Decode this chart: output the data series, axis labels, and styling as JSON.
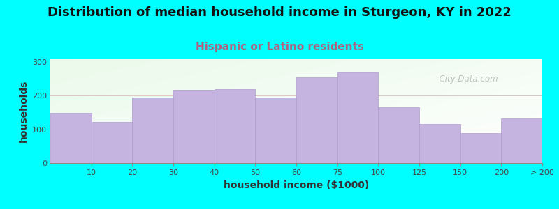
{
  "title": "Distribution of median household income in Sturgeon, KY in 2022",
  "subtitle": "Hispanic or Latino residents",
  "xlabel": "household income ($1000)",
  "ylabel": "households",
  "bar_values": [
    148,
    122,
    195,
    217,
    220,
    195,
    255,
    268,
    165,
    115,
    88,
    132
  ],
  "bar_color": "#c5b3e0",
  "bar_edge_color": "#b09ccf",
  "background_color": "#00ffff",
  "ylim": [
    0,
    310
  ],
  "yticks": [
    0,
    100,
    200,
    300
  ],
  "watermark": "  City-Data.com",
  "title_fontsize": 13,
  "subtitle_fontsize": 11,
  "subtitle_color": "#b06080",
  "axis_label_fontsize": 10,
  "tick_label_fontsize": 8
}
